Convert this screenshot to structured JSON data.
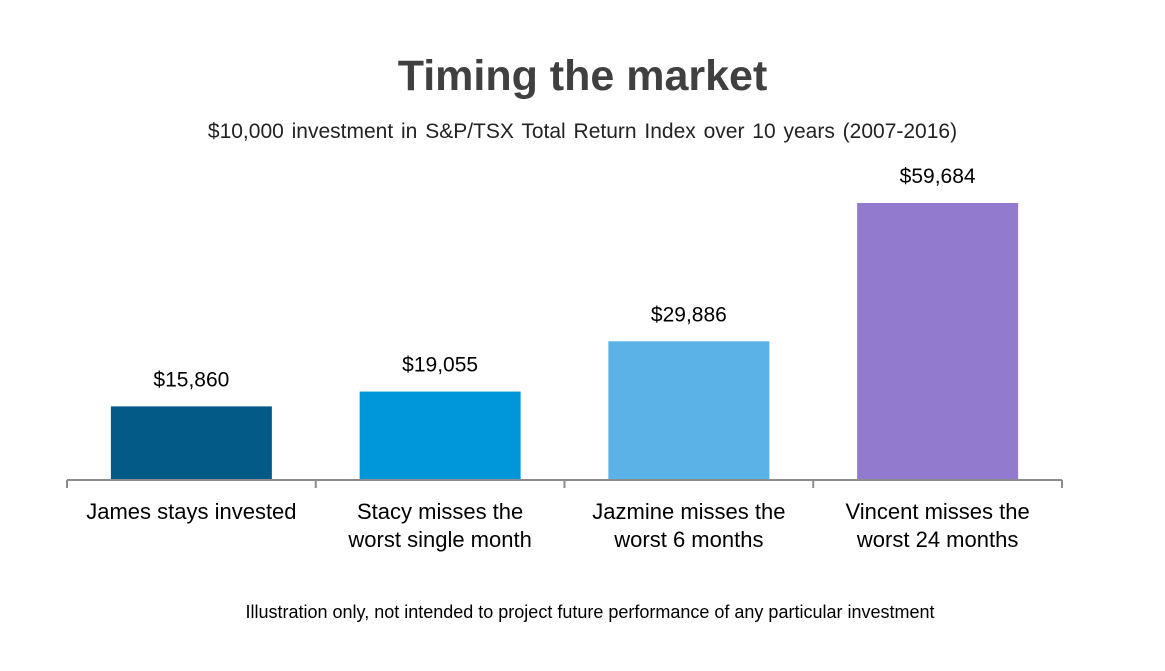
{
  "chart_data": {
    "type": "bar",
    "title": "Timing the market",
    "subtitle": "$10,000 investment in S&P/TSX Total Return Index over 10 years (2007-2016)",
    "categories": [
      [
        "James stays invested"
      ],
      [
        "Stacy misses the",
        "worst single month"
      ],
      [
        "Jazmine misses the",
        "worst 6 months"
      ],
      [
        "Vincent misses the",
        "worst 24 months"
      ]
    ],
    "values": [
      15860,
      19055,
      29886,
      59684
    ],
    "data_labels": [
      "$15,860",
      "$19,055",
      "$29,886",
      "$59,684"
    ],
    "colors": [
      "#045a87",
      "#0096da",
      "#5bb2e6",
      "#927bcf"
    ],
    "xlabel": "",
    "ylabel": "",
    "ylim": [
      0,
      59684
    ],
    "grid": false,
    "legend": "none"
  },
  "footnote": "Illustration only, not intended to project future performance of any particular investment"
}
